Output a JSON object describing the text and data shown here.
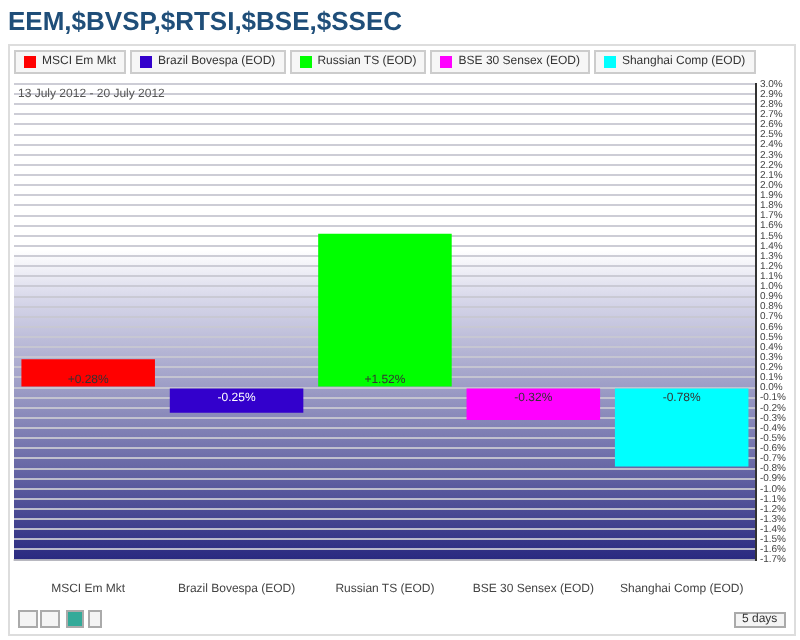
{
  "chart_data": {
    "type": "bar",
    "title": "EEM,$BVSP,$RTSI,$BSE,$SSEC",
    "categories": [
      "MSCI Em Mkt",
      "Brazil Bovespa (EOD)",
      "Russian TS (EOD)",
      "BSE 30 Sensex (EOD)",
      "Shanghai Comp (EOD)"
    ],
    "series": [
      {
        "name": "MSCI Em Mkt",
        "color": "#ff0000",
        "values": [
          0.28,
          null,
          null,
          null,
          null
        ],
        "value_labels": [
          "+0.28%",
          null,
          null,
          null,
          null
        ]
      },
      {
        "name": "Brazil Bovespa (EOD)",
        "color": "#3300cc",
        "values": [
          null,
          -0.25,
          null,
          null,
          null
        ],
        "value_labels": [
          null,
          "-0.25%",
          null,
          null,
          null
        ]
      },
      {
        "name": "Russian TS (EOD)",
        "color": "#00ff00",
        "values": [
          null,
          null,
          1.52,
          null,
          null
        ],
        "value_labels": [
          null,
          null,
          "+1.52%",
          null,
          null
        ]
      },
      {
        "name": "BSE 30 Sensex (EOD)",
        "color": "#ff00ff",
        "values": [
          null,
          null,
          null,
          -0.32,
          null
        ],
        "value_labels": [
          null,
          null,
          null,
          "-0.32%",
          null
        ]
      },
      {
        "name": "Shanghai Comp (EOD)",
        "color": "#00ffff",
        "values": [
          null,
          null,
          null,
          null,
          -0.78
        ],
        "value_labels": [
          null,
          null,
          null,
          null,
          "-0.78%"
        ]
      }
    ],
    "ylim": [
      -1.7,
      3.0
    ],
    "yticks": [
      {
        "value": -1.7,
        "label": "-1.7%"
      },
      {
        "value": -1.6,
        "label": "-1.6%"
      },
      {
        "value": -1.5,
        "label": "-1.5%"
      },
      {
        "value": -1.4,
        "label": "-1.4%"
      },
      {
        "value": -1.3,
        "label": "-1.3%"
      },
      {
        "value": -1.2,
        "label": "-1.2%"
      },
      {
        "value": -1.1,
        "label": "-1.1%"
      },
      {
        "value": -1.0,
        "label": "-1.0%"
      },
      {
        "value": -0.9,
        "label": "-0.9%"
      },
      {
        "value": -0.8,
        "label": "-0.8%"
      },
      {
        "value": -0.7,
        "label": "-0.7%"
      },
      {
        "value": -0.6,
        "label": "-0.6%"
      },
      {
        "value": -0.5,
        "label": "-0.5%"
      },
      {
        "value": -0.4,
        "label": "-0.4%"
      },
      {
        "value": -0.3,
        "label": "-0.3%"
      },
      {
        "value": -0.2,
        "label": "-0.2%"
      },
      {
        "value": -0.1,
        "label": "-0.1%"
      },
      {
        "value": 0,
        "label": "0.0%"
      },
      {
        "value": 0.1,
        "label": "0.1%"
      },
      {
        "value": 0.2,
        "label": "0.2%"
      },
      {
        "value": 0.3,
        "label": "0.3%"
      },
      {
        "value": 0.4,
        "label": "0.4%"
      },
      {
        "value": 0.5,
        "label": "0.5%"
      },
      {
        "value": 0.6,
        "label": "0.6%"
      },
      {
        "value": 0.7,
        "label": "0.7%"
      },
      {
        "value": 0.8,
        "label": "0.8%"
      },
      {
        "value": 0.9,
        "label": "0.9%"
      },
      {
        "value": 1.0,
        "label": "1.0%"
      },
      {
        "value": 1.1,
        "label": "1.1%"
      },
      {
        "value": 1.2,
        "label": "1.2%"
      },
      {
        "value": 1.3,
        "label": "1.3%"
      },
      {
        "value": 1.4,
        "label": "1.4%"
      },
      {
        "value": 1.5,
        "label": "1.5%"
      },
      {
        "value": 1.6,
        "label": "1.6%"
      },
      {
        "value": 1.7,
        "label": "1.7%"
      },
      {
        "value": 1.8,
        "label": "1.8%"
      },
      {
        "value": 1.9,
        "label": "1.9%"
      },
      {
        "value": 2.0,
        "label": "2.0%"
      },
      {
        "value": 2.1,
        "label": "2.1%"
      },
      {
        "value": 2.2,
        "label": "2.2%"
      },
      {
        "value": 2.3,
        "label": "2.3%"
      },
      {
        "value": 2.4,
        "label": "2.4%"
      },
      {
        "value": 2.5,
        "label": "2.5%"
      },
      {
        "value": 2.6,
        "label": "2.6%"
      },
      {
        "value": 2.7,
        "label": "2.7%"
      },
      {
        "value": 2.8,
        "label": "2.8%"
      },
      {
        "value": 2.9,
        "label": "2.9%"
      },
      {
        "value": 3.0,
        "label": "3.0%"
      }
    ],
    "grid": "y",
    "legend": "top left",
    "annotations": [
      "13 July 2012 - 20 July 2012",
      "5 days"
    ]
  }
}
